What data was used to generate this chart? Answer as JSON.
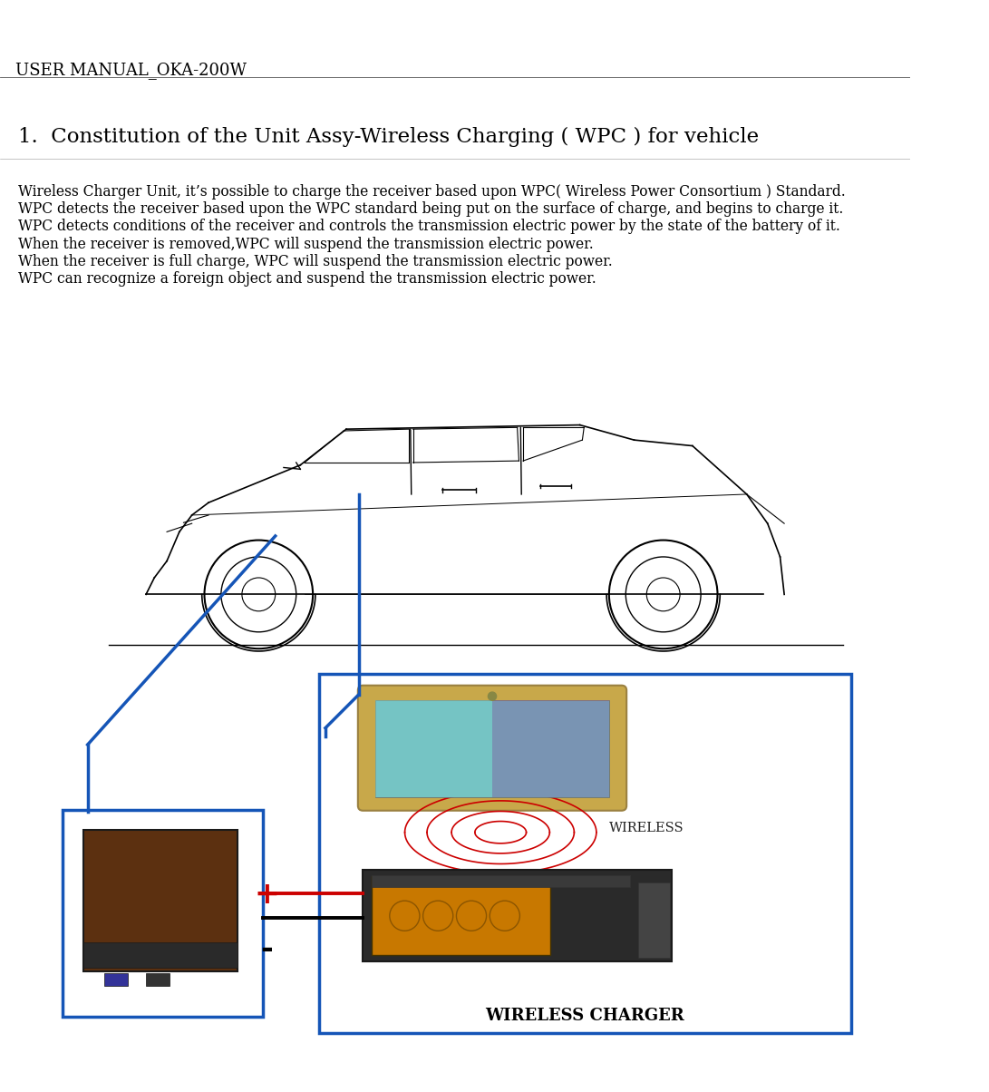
{
  "header_text": "USER MANUAL_OKA-200W",
  "section_title": "1.  Constitution of the Unit Assy-Wireless Charging ( WPC ) for vehicle",
  "body_lines": [
    "Wireless Charger Unit, it’s possible to charge the receiver based upon WPC( Wireless Power Consortium ) Standard.",
    "WPC detects the receiver based upon the WPC standard being put on the surface of charge, and begins to charge it.",
    "WPC detects conditions of the receiver and controls the transmission electric power by the state of the battery of it.",
    "When the receiver is removed,WPC will suspend the transmission electric power.",
    "When the receiver is full charge, WPC will suspend the transmission electric power.",
    "WPC can recognize a foreign object and suspend the transmission electric power."
  ],
  "bg_color": "#ffffff",
  "text_color": "#000000",
  "blue_color": "#1555b7",
  "red_color": "#cc0000",
  "header_font_size": 13,
  "title_font_size": 16.5,
  "body_font_size": 11.2,
  "fig_width": 10.91,
  "fig_height": 12.04,
  "dpi": 100
}
